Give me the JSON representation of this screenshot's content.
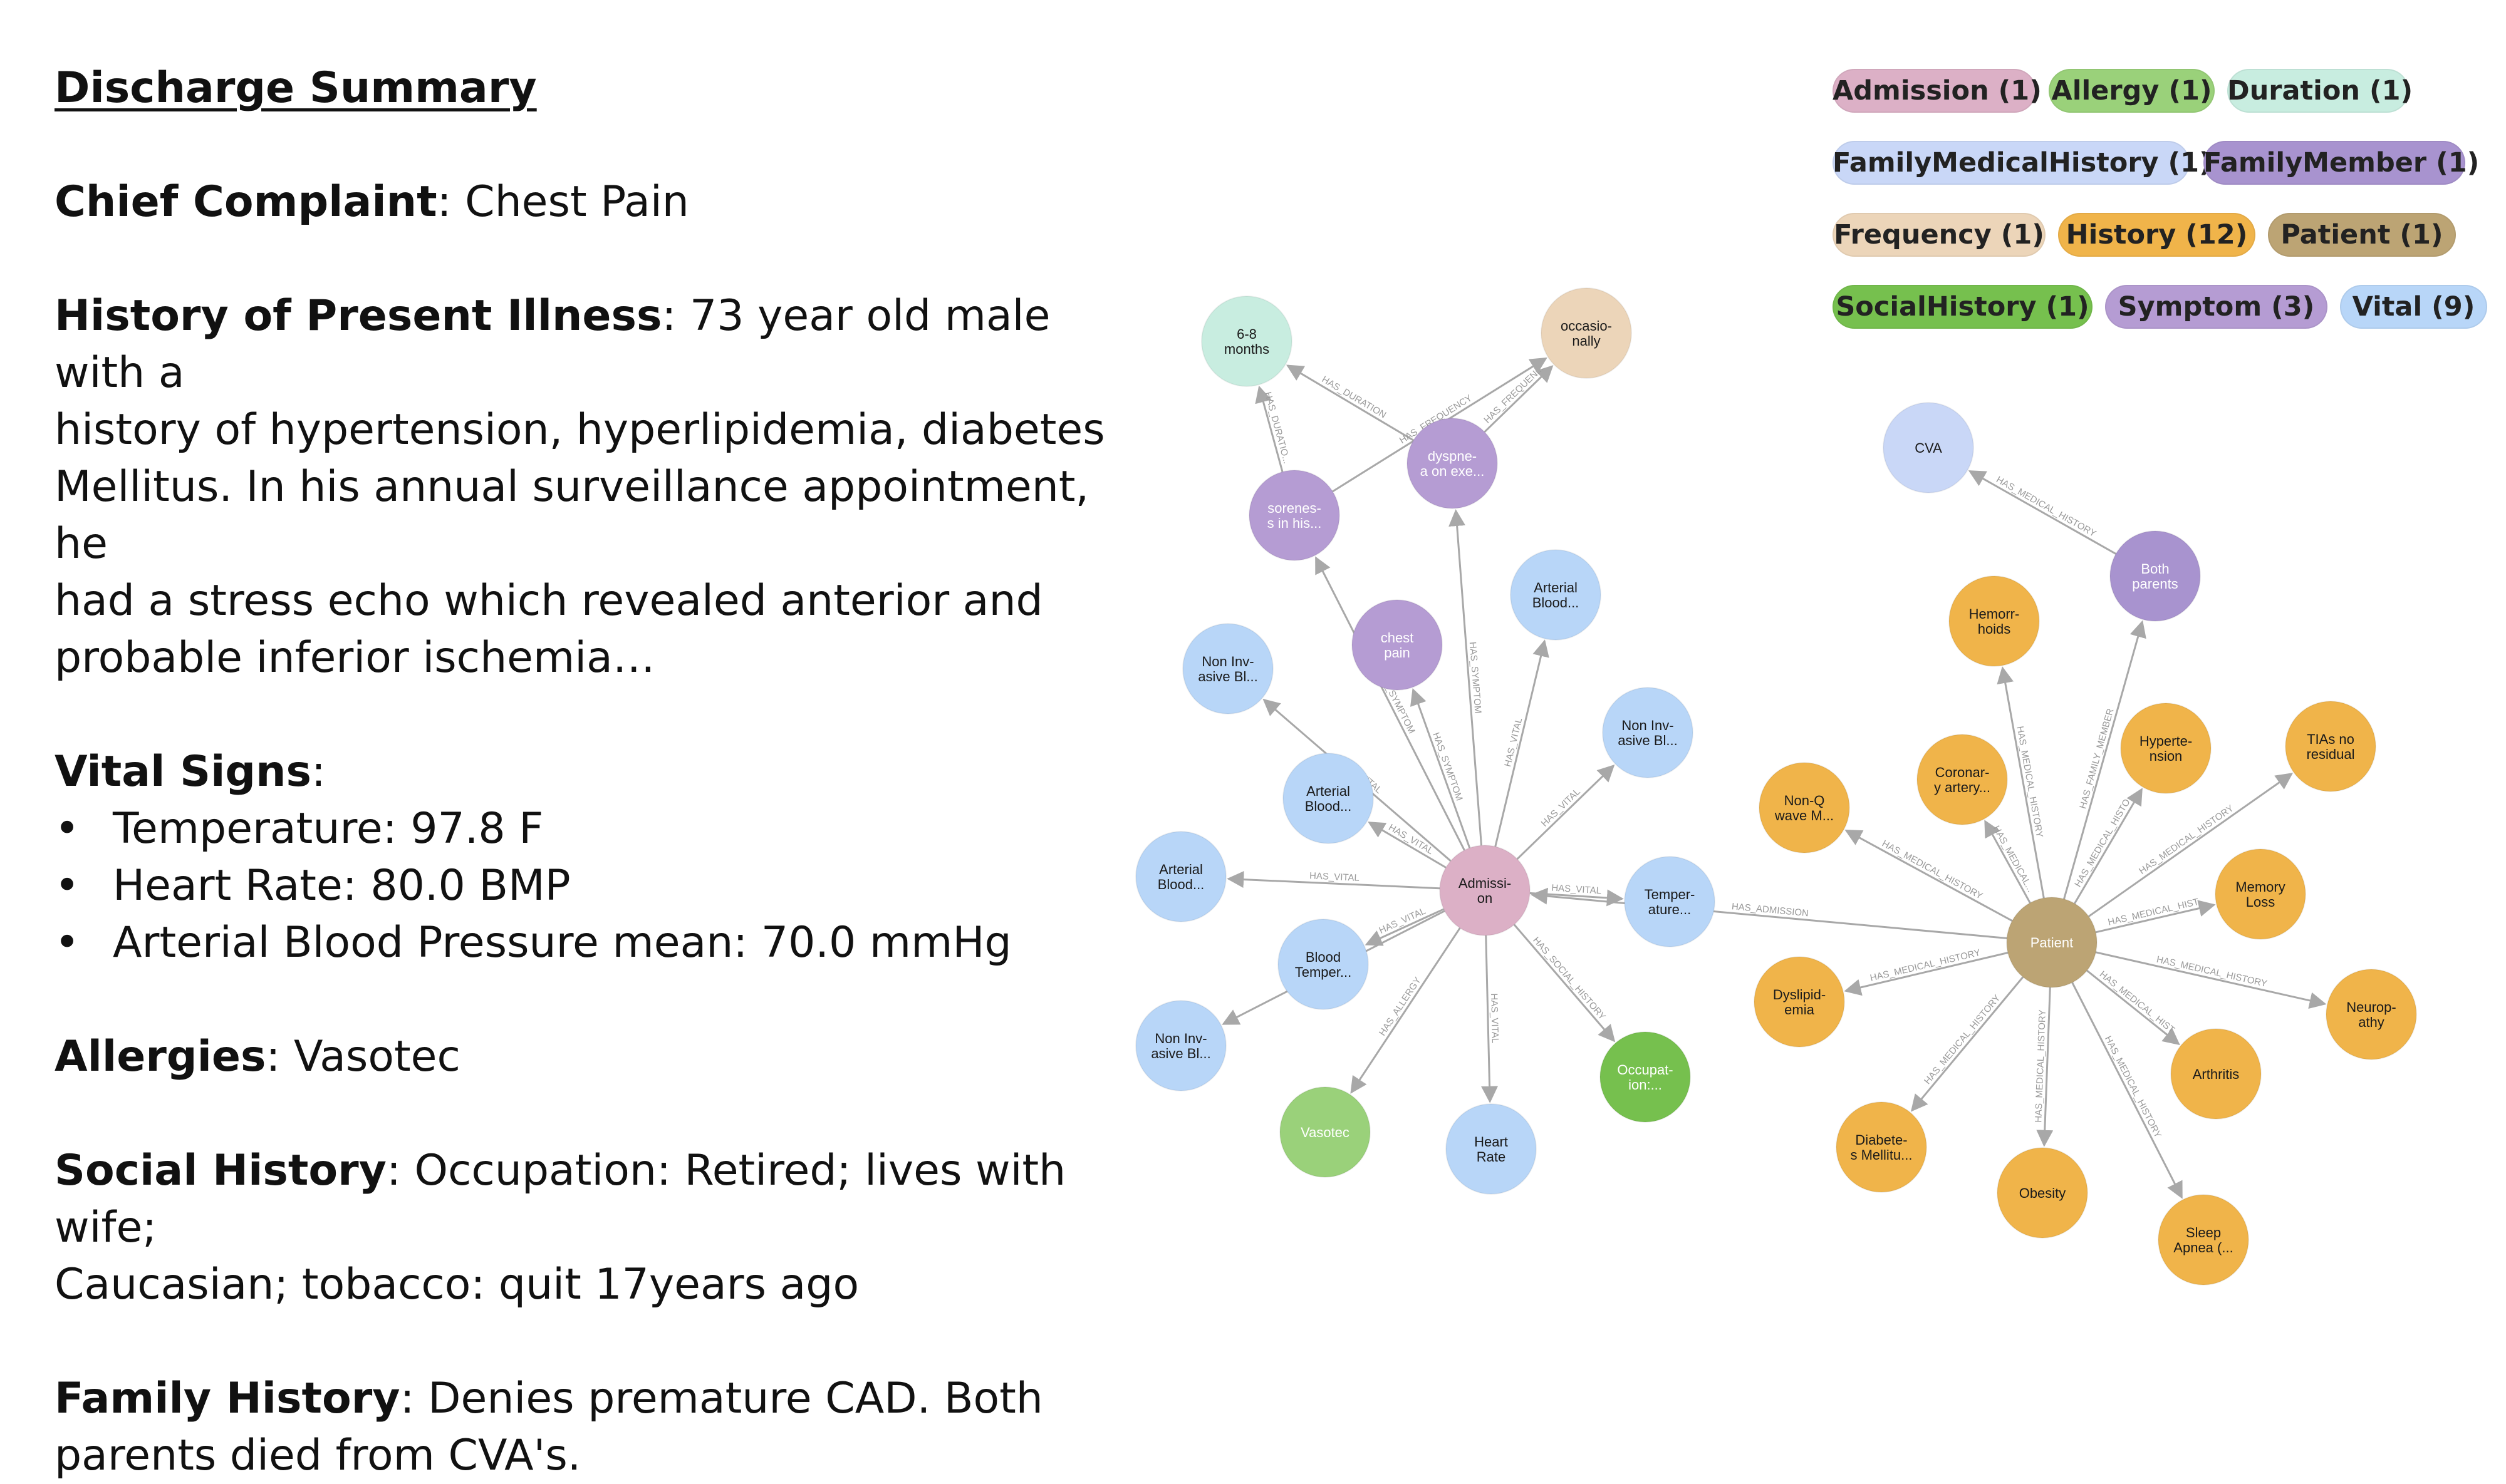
{
  "summary": {
    "title": "Discharge Summary",
    "chief_complaint_label": "Chief Complaint",
    "chief_complaint": ": Chest Pain",
    "hpi_label": "History of Present Illness",
    "hpi_lines": [
      ": 73 year old male with a",
      "history of hypertension, hyperlipidemia, diabetes",
      "Mellitus. In his annual surveillance appointment, he",
      "had a stress echo which revealed anterior and",
      "probable inferior ischemia…"
    ],
    "vitals_label": "Vital Signs",
    "vitals_colon": ":",
    "vitals": [
      "Temperature: 97.8 F",
      "Heart Rate: 80.0 BMP",
      "Arterial Blood Pressure mean: 70.0 mmHg"
    ],
    "allergies_label": "Allergies",
    "allergies": ": Vasotec",
    "social_label": "Social History",
    "social_lines": [
      ": Occupation: Retired; lives with wife;",
      "Caucasian; tobacco: quit 17years ago"
    ],
    "family_label": "Family History",
    "family_lines": [
      ": Denies premature CAD. Both",
      "parents died from CVA's."
    ]
  },
  "legend": [
    {
      "label": "Admission (1)",
      "color": "#dcb0c6"
    },
    {
      "label": "Allergy (1)",
      "color": "#9ad17a"
    },
    {
      "label": "Duration (1)",
      "color": "#c8ede0"
    },
    {
      "label": "FamilyMedicalHistory (1)",
      "color": "#c9d7f7"
    },
    {
      "label": "FamilyMember (1)",
      "color": "#a893cf"
    },
    {
      "label": "Frequency (1)",
      "color": "#ecd5b9"
    },
    {
      "label": "History (12)",
      "color": "#f0b44a"
    },
    {
      "label": "Patient (1)",
      "color": "#bca474"
    },
    {
      "label": "SocialHistory (1)",
      "color": "#76c04e"
    },
    {
      "label": "Symptom (3)",
      "color": "#b59cd3"
    },
    {
      "label": "Vital (9)",
      "color": "#b8d6f8"
    }
  ],
  "graph": {
    "nodes": [
      {
        "id": "admission",
        "label": [
          "Admissi-",
          "on"
        ],
        "color": "#dcb0c6"
      },
      {
        "id": "patient",
        "label": [
          "Patient"
        ],
        "color": "#bca474",
        "light": true
      },
      {
        "id": "duration",
        "label": [
          "6-8",
          "months"
        ],
        "color": "#c8ede0"
      },
      {
        "id": "frequency",
        "label": [
          "occasio-",
          "nally"
        ],
        "color": "#ecd5b9"
      },
      {
        "id": "soreness",
        "label": [
          "sorenes-",
          "s in his..."
        ],
        "color": "#b59cd3",
        "light": true
      },
      {
        "id": "dyspnea",
        "label": [
          "dyspne-",
          "a on exe..."
        ],
        "color": "#b59cd3",
        "light": true
      },
      {
        "id": "chestpain",
        "label": [
          "chest",
          "pain"
        ],
        "color": "#b59cd3",
        "light": true
      },
      {
        "id": "v_abp_top",
        "label": [
          "Arterial",
          "Blood..."
        ],
        "color": "#b8d6f8"
      },
      {
        "id": "v_nibp_1",
        "label": [
          "Non Inv-",
          "asive Bl..."
        ],
        "color": "#b8d6f8"
      },
      {
        "id": "v_nibp_2",
        "label": [
          "Non Inv-",
          "asive Bl..."
        ],
        "color": "#b8d6f8"
      },
      {
        "id": "v_abp_mid",
        "label": [
          "Arterial",
          "Blood..."
        ],
        "color": "#b8d6f8"
      },
      {
        "id": "v_abp_left",
        "label": [
          "Arterial",
          "Blood..."
        ],
        "color": "#b8d6f8"
      },
      {
        "id": "v_bt",
        "label": [
          "Blood",
          "Temper..."
        ],
        "color": "#b8d6f8"
      },
      {
        "id": "v_nibp_3",
        "label": [
          "Non Inv-",
          "asive Bl..."
        ],
        "color": "#b8d6f8"
      },
      {
        "id": "v_temp",
        "label": [
          "Temper-",
          "ature..."
        ],
        "color": "#b8d6f8"
      },
      {
        "id": "v_hr",
        "label": [
          "Heart",
          "Rate"
        ],
        "color": "#b8d6f8"
      },
      {
        "id": "allergy",
        "label": [
          "Vasotec"
        ],
        "color": "#9ad17a",
        "light": true
      },
      {
        "id": "social",
        "label": [
          "Occupat-",
          "ion:..."
        ],
        "color": "#76c04e",
        "light": true
      },
      {
        "id": "cva",
        "label": [
          "CVA"
        ],
        "color": "#c9d7f7"
      },
      {
        "id": "parents",
        "label": [
          "Both",
          "parents"
        ],
        "color": "#a893cf",
        "light": true
      },
      {
        "id": "h_hemorr",
        "label": [
          "Hemorr-",
          "hoids"
        ],
        "color": "#f0b44a"
      },
      {
        "id": "h_coronary",
        "label": [
          "Coronar-",
          "y artery..."
        ],
        "color": "#f0b44a"
      },
      {
        "id": "h_nonq",
        "label": [
          "Non-Q",
          "wave M..."
        ],
        "color": "#f0b44a"
      },
      {
        "id": "h_htn",
        "label": [
          "Hyperte-",
          "nsion"
        ],
        "color": "#f0b44a"
      },
      {
        "id": "h_tia",
        "label": [
          "TIAs no",
          "residual"
        ],
        "color": "#f0b44a"
      },
      {
        "id": "h_memory",
        "label": [
          "Memory",
          "Loss"
        ],
        "color": "#f0b44a"
      },
      {
        "id": "h_dyslip",
        "label": [
          "Dyslipid-",
          "emia"
        ],
        "color": "#f0b44a"
      },
      {
        "id": "h_neuro",
        "label": [
          "Neurop-",
          "athy"
        ],
        "color": "#f0b44a"
      },
      {
        "id": "h_arth",
        "label": [
          "Arthritis"
        ],
        "color": "#f0b44a"
      },
      {
        "id": "h_diabetes",
        "label": [
          "Diabete-",
          "s Mellitu..."
        ],
        "color": "#f0b44a"
      },
      {
        "id": "h_obesity",
        "label": [
          "Obesity"
        ],
        "color": "#f0b44a"
      },
      {
        "id": "h_sleep",
        "label": [
          "Sleep",
          "Apnea (..."
        ],
        "color": "#f0b44a"
      }
    ],
    "edges": [
      {
        "from": "admission",
        "to": "soreness",
        "label": "HAS_SYMPTOM"
      },
      {
        "from": "admission",
        "to": "dyspnea",
        "label": "HAS_SYMPTOM"
      },
      {
        "from": "admission",
        "to": "chestpain",
        "label": "HAS_SYMPTOM"
      },
      {
        "from": "soreness",
        "to": "duration",
        "label": "HAS_DURATIO..."
      },
      {
        "from": "dyspnea",
        "to": "duration",
        "label": "HAS_DURATION"
      },
      {
        "from": "soreness",
        "to": "frequency",
        "label": "HAS_FREQUENCY"
      },
      {
        "from": "dyspnea",
        "to": "frequency",
        "label": "HAS_FREQUEN..."
      },
      {
        "from": "admission",
        "to": "v_abp_top",
        "label": "HAS_VITAL"
      },
      {
        "from": "admission",
        "to": "v_nibp_1",
        "label": "HAS_VITAL"
      },
      {
        "from": "admission",
        "to": "v_nibp_2",
        "label": "HAS_VITAL"
      },
      {
        "from": "admission",
        "to": "v_abp_mid",
        "label": "HAS_VITAL"
      },
      {
        "from": "admission",
        "to": "v_abp_left",
        "label": "HAS_VITAL"
      },
      {
        "from": "admission",
        "to": "v_bt",
        "label": "HAS_VITAL"
      },
      {
        "from": "admission",
        "to": "v_nibp_3",
        "label": "HAS_VITAL"
      },
      {
        "from": "admission",
        "to": "v_temp",
        "label": "HAS_VITAL"
      },
      {
        "from": "admission",
        "to": "v_hr",
        "label": "HAS_VITAL"
      },
      {
        "from": "admission",
        "to": "allergy",
        "label": "HAS_ALLERGY"
      },
      {
        "from": "admission",
        "to": "social",
        "label": "HAS_SOCIAL_HISTORY"
      },
      {
        "from": "patient",
        "to": "admission",
        "label": "HAS_ADMISSION"
      },
      {
        "from": "patient",
        "to": "parents",
        "label": "HAS_FAMILY_MEMBER"
      },
      {
        "from": "parents",
        "to": "cva",
        "label": "HAS_MEDICAL_HISTORY"
      },
      {
        "from": "patient",
        "to": "h_hemorr",
        "label": "HAS_MEDICAL_HISTORY"
      },
      {
        "from": "patient",
        "to": "h_coronary",
        "label": "HAS_MEDICAL..."
      },
      {
        "from": "patient",
        "to": "h_nonq",
        "label": "HAS_MEDICAL_HISTORY"
      },
      {
        "from": "patient",
        "to": "h_htn",
        "label": "HAS_MEDICAL_HISTO"
      },
      {
        "from": "patient",
        "to": "h_tia",
        "label": "HAS_MEDICAL_HISTORY"
      },
      {
        "from": "patient",
        "to": "h_memory",
        "label": "HAS_MEDICAL_HIST"
      },
      {
        "from": "patient",
        "to": "h_dyslip",
        "label": "HAS_MEDICAL_HISTORY"
      },
      {
        "from": "patient",
        "to": "h_neuro",
        "label": "HAS_MEDICAL_HISTORY"
      },
      {
        "from": "patient",
        "to": "h_arth",
        "label": "HAS_MEDICAL_HIST"
      },
      {
        "from": "patient",
        "to": "h_diabetes",
        "label": "HAS_MEDICAL_HISTORY"
      },
      {
        "from": "patient",
        "to": "h_obesity",
        "label": "HAS_MEDICAL_HISTORY"
      },
      {
        "from": "patient",
        "to": "h_sleep",
        "label": "HAS_MEDICAL_HISTORY"
      }
    ]
  }
}
